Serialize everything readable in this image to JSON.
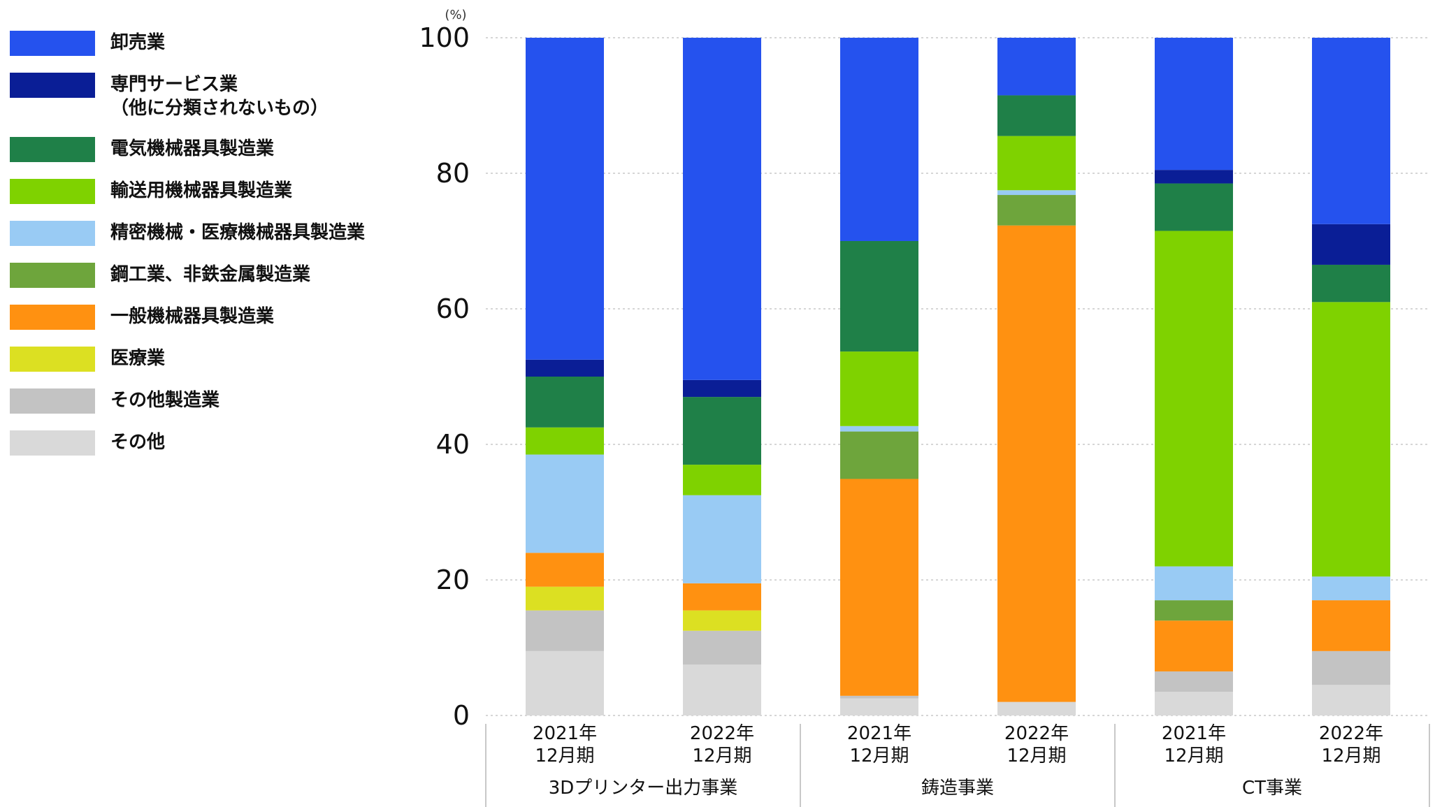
{
  "chart_data": {
    "type": "bar",
    "stacked": true,
    "y_unit": "(%)",
    "ylim": [
      0,
      100
    ],
    "yticks": [
      "0",
      "20",
      "40",
      "60",
      "80",
      "100"
    ],
    "grid": true,
    "legend_position": "left",
    "groups": [
      {
        "label": "3Dプリンター出力事業",
        "bars": [
          "2021年\n12月期",
          "2022年\n12月期"
        ]
      },
      {
        "label": "鋳造事業",
        "bars": [
          "2021年\n12月期",
          "2022年\n12月期"
        ]
      },
      {
        "label": "CT事業",
        "bars": [
          "2021年\n12月期",
          "2022年\n12月期"
        ]
      }
    ],
    "categories": [
      "3Dプリンター出力事業 2021年12月期",
      "3Dプリンター出力事業 2022年12月期",
      "鋳造事業 2021年12月期",
      "鋳造事業 2022年12月期",
      "CT事業 2021年12月期",
      "CT事業 2022年12月期"
    ],
    "series": [
      {
        "name": "その他",
        "color": "#d9d9d9",
        "values": [
          9.5,
          7.5,
          2.5,
          2.0,
          3.5,
          4.5
        ]
      },
      {
        "name": "その他製造業",
        "color": "#c3c3c3",
        "values": [
          6.0,
          5.0,
          0.4,
          0,
          3.0,
          5.0
        ]
      },
      {
        "name": "医療業",
        "color": "#dce022",
        "values": [
          3.5,
          3.0,
          0,
          0,
          0,
          0
        ]
      },
      {
        "name": "一般機械器具製造業",
        "color": "#ff9111",
        "values": [
          5.0,
          4.0,
          32.0,
          70.3,
          7.5,
          7.5
        ]
      },
      {
        "name": "鋼工業、非鉄金属製造業",
        "color": "#6ea53c",
        "values": [
          0,
          0,
          7.0,
          4.5,
          3.0,
          0
        ]
      },
      {
        "name": "精密機械・医療機械器具製造業",
        "color": "#99cbf4",
        "values": [
          14.5,
          13.0,
          0.8,
          0.7,
          5.0,
          3.5
        ]
      },
      {
        "name": "輸送用機械器具製造業",
        "color": "#7fd200",
        "values": [
          4.0,
          4.5,
          11.0,
          8.0,
          49.5,
          40.5
        ]
      },
      {
        "name": "電気機械器具製造業",
        "color": "#1f8048",
        "values": [
          7.5,
          10.0,
          16.3,
          6.0,
          7.0,
          5.5
        ]
      },
      {
        "name": "専門サービス業\n（他に分類されないもの）",
        "color": "#0a1e96",
        "values": [
          2.5,
          2.5,
          0,
          0,
          2.0,
          6.0
        ]
      },
      {
        "name": "卸売業",
        "color": "#2552ee",
        "values": [
          47.5,
          50.5,
          30.0,
          8.5,
          19.5,
          27.5
        ]
      }
    ]
  }
}
